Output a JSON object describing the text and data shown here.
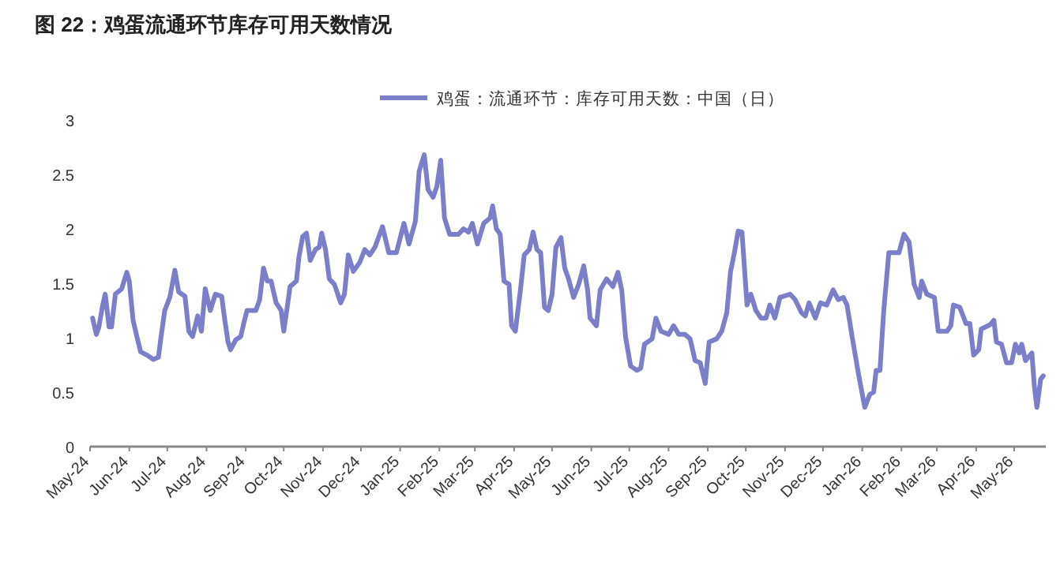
{
  "chart_data": {
    "type": "line",
    "title": "图 22：鸡蛋流通环节库存可用天数情况",
    "x": [
      "2024-05-03",
      "2024-05-06",
      "2024-05-08",
      "2024-05-11",
      "2024-05-13",
      "2024-05-16",
      "2024-05-18",
      "2024-05-21",
      "2024-05-26",
      "2024-05-30",
      "2024-06-01",
      "2024-06-04",
      "2024-06-07",
      "2024-06-10",
      "2024-06-15",
      "2024-06-20",
      "2024-06-24",
      "2024-06-26",
      "2024-06-29",
      "2024-07-03",
      "2024-07-07",
      "2024-07-10",
      "2024-07-15",
      "2024-07-18",
      "2024-07-21",
      "2024-07-25",
      "2024-07-28",
      "2024-07-31",
      "2024-08-04",
      "2024-08-08",
      "2024-08-13",
      "2024-08-15",
      "2024-08-18",
      "2024-08-20",
      "2024-08-24",
      "2024-08-28",
      "2024-08-31",
      "2024-09-02",
      "2024-09-09",
      "2024-09-12",
      "2024-09-15",
      "2024-09-18",
      "2024-09-21",
      "2024-09-25",
      "2024-09-29",
      "2024-10-01",
      "2024-10-04",
      "2024-10-06",
      "2024-10-11",
      "2024-10-13",
      "2024-10-16",
      "2024-10-19",
      "2024-10-22",
      "2024-10-26",
      "2024-10-29",
      "2024-10-31",
      "2024-11-03",
      "2024-11-06",
      "2024-11-10",
      "2024-11-15",
      "2024-11-18",
      "2024-11-21",
      "2024-11-25",
      "2024-11-30",
      "2024-12-04",
      "2024-12-08",
      "2024-12-12",
      "2024-12-18",
      "2024-12-23",
      "2024-12-25",
      "2024-12-29",
      "2025-01-04",
      "2025-01-08",
      "2025-01-13",
      "2025-01-16",
      "2025-01-20",
      "2025-01-23",
      "2025-01-27",
      "2025-01-30",
      "2025-02-02",
      "2025-02-05",
      "2025-02-09",
      "2025-02-16",
      "2025-02-20",
      "2025-02-24",
      "2025-02-27",
      "2025-03-03",
      "2025-03-08",
      "2025-03-13",
      "2025-03-15",
      "2025-03-18",
      "2025-03-21",
      "2025-03-24",
      "2025-03-28",
      "2025-03-30",
      "2025-04-02",
      "2025-04-06",
      "2025-04-09",
      "2025-04-13",
      "2025-04-16",
      "2025-04-19",
      "2025-04-22",
      "2025-04-25",
      "2025-04-28",
      "2025-05-01",
      "2025-05-04",
      "2025-05-08",
      "2025-05-11",
      "2025-05-14",
      "2025-05-18",
      "2025-05-22",
      "2025-05-26",
      "2025-05-29",
      "2025-05-31",
      "2025-06-05",
      "2025-06-08",
      "2025-06-13",
      "2025-06-18",
      "2025-06-22",
      "2025-06-25",
      "2025-06-28",
      "2025-07-02",
      "2025-07-07",
      "2025-07-10",
      "2025-07-13",
      "2025-07-19",
      "2025-07-22",
      "2025-07-26",
      "2025-08-01",
      "2025-08-05",
      "2025-08-09",
      "2025-08-14",
      "2025-08-18",
      "2025-08-22",
      "2025-08-26",
      "2025-08-30",
      "2025-09-02",
      "2025-09-08",
      "2025-09-12",
      "2025-09-16",
      "2025-09-19",
      "2025-09-22",
      "2025-09-25",
      "2025-09-28",
      "2025-10-02",
      "2025-10-05",
      "2025-10-09",
      "2025-10-13",
      "2025-10-17",
      "2025-10-20",
      "2025-10-24",
      "2025-10-28",
      "2025-11-05",
      "2025-11-09",
      "2025-11-14",
      "2025-11-17",
      "2025-11-20",
      "2025-11-25",
      "2025-11-29",
      "2025-12-04",
      "2025-12-09",
      "2025-12-13",
      "2025-12-17",
      "2025-12-20",
      "2025-12-24",
      "2025-12-29",
      "2026-01-03",
      "2026-01-07",
      "2026-01-10",
      "2026-01-12",
      "2026-01-15",
      "2026-01-18",
      "2026-01-22",
      "2026-01-30",
      "2026-02-03",
      "2026-02-07",
      "2026-02-11",
      "2026-02-15",
      "2026-02-17",
      "2026-02-21",
      "2026-02-27",
      "2026-03-02",
      "2026-03-09",
      "2026-03-12",
      "2026-03-14",
      "2026-03-19",
      "2026-03-24",
      "2026-03-27",
      "2026-03-30",
      "2026-04-03",
      "2026-04-05",
      "2026-04-12",
      "2026-04-15",
      "2026-04-17",
      "2026-04-21",
      "2026-04-25",
      "2026-04-29",
      "2026-05-02",
      "2026-05-05",
      "2026-05-07",
      "2026-05-10",
      "2026-05-15",
      "2026-05-17",
      "2026-05-19",
      "2026-05-22",
      "2026-05-24"
    ],
    "series": [
      {
        "name": "鸡蛋：流通环节：库存可用天数：中国（日）",
        "color": "#7b7fc9",
        "values": [
          1.18,
          1.03,
          1.1,
          1.3,
          1.4,
          1.1,
          1.1,
          1.4,
          1.45,
          1.6,
          1.52,
          1.16,
          1.01,
          0.87,
          0.84,
          0.8,
          0.82,
          1.0,
          1.25,
          1.37,
          1.62,
          1.42,
          1.38,
          1.06,
          1.01,
          1.2,
          1.06,
          1.45,
          1.25,
          1.4,
          1.38,
          1.2,
          0.96,
          0.89,
          0.98,
          1.01,
          1.16,
          1.25,
          1.25,
          1.35,
          1.64,
          1.52,
          1.52,
          1.32,
          1.25,
          1.06,
          1.3,
          1.47,
          1.52,
          1.74,
          1.93,
          1.96,
          1.71,
          1.81,
          1.83,
          1.96,
          1.81,
          1.54,
          1.49,
          1.32,
          1.4,
          1.76,
          1.61,
          1.69,
          1.81,
          1.76,
          1.83,
          2.02,
          1.78,
          1.78,
          1.78,
          2.05,
          1.86,
          2.07,
          2.53,
          2.68,
          2.36,
          2.29,
          2.39,
          2.63,
          2.1,
          1.95,
          1.95,
          2.0,
          1.97,
          2.05,
          1.86,
          2.05,
          2.1,
          2.21,
          2.0,
          1.95,
          1.52,
          1.49,
          1.11,
          1.06,
          1.44,
          1.76,
          1.81,
          1.97,
          1.81,
          1.78,
          1.28,
          1.25,
          1.4,
          1.83,
          1.92,
          1.64,
          1.54,
          1.37,
          1.49,
          1.66,
          1.44,
          1.18,
          1.11,
          1.44,
          1.54,
          1.47,
          1.6,
          1.44,
          1.01,
          0.74,
          0.7,
          0.72,
          0.94,
          0.99,
          1.18,
          1.06,
          1.03,
          1.11,
          1.03,
          1.03,
          0.99,
          0.79,
          0.77,
          0.58,
          0.96,
          0.99,
          1.06,
          1.23,
          1.61,
          1.78,
          1.98,
          1.97,
          1.3,
          1.4,
          1.25,
          1.18,
          1.18,
          1.3,
          1.18,
          1.37,
          1.4,
          1.35,
          1.23,
          1.2,
          1.32,
          1.18,
          1.32,
          1.3,
          1.44,
          1.35,
          1.37,
          1.3,
          1.01,
          0.67,
          0.36,
          0.48,
          0.5,
          0.7,
          0.7,
          1.25,
          1.78,
          1.78,
          1.95,
          1.88,
          1.49,
          1.37,
          1.52,
          1.4,
          1.37,
          1.06,
          1.06,
          1.11,
          1.3,
          1.28,
          1.13,
          1.13,
          0.84,
          0.89,
          1.08,
          1.12,
          1.16,
          0.96,
          0.94,
          0.77,
          0.77,
          0.94,
          0.86,
          0.94,
          0.79,
          0.86,
          0.55,
          0.36,
          0.62,
          0.65
        ]
      }
    ],
    "xlim": [
      "2024-05-01",
      "2026-05-26"
    ],
    "xticks": [
      {
        "value": "2024-05-01",
        "label": "May-24"
      },
      {
        "value": "2024-06-01",
        "label": "Jun-24"
      },
      {
        "value": "2024-07-01",
        "label": "Jul-24"
      },
      {
        "value": "2024-08-01",
        "label": "Aug-24"
      },
      {
        "value": "2024-09-01",
        "label": "Sep-24"
      },
      {
        "value": "2024-10-01",
        "label": "Oct-24"
      },
      {
        "value": "2024-11-01",
        "label": "Nov-24"
      },
      {
        "value": "2024-12-01",
        "label": "Dec-24"
      },
      {
        "value": "2025-01-01",
        "label": "Jan-25"
      },
      {
        "value": "2025-02-01",
        "label": "Feb-25"
      },
      {
        "value": "2025-03-01",
        "label": "Mar-25"
      },
      {
        "value": "2025-04-01",
        "label": "Apr-25"
      },
      {
        "value": "2025-05-01",
        "label": "May-25"
      },
      {
        "value": "2025-06-01",
        "label": "Jun-25"
      },
      {
        "value": "2025-07-01",
        "label": "Jul-25"
      },
      {
        "value": "2025-08-01",
        "label": "Aug-25"
      },
      {
        "value": "2025-09-01",
        "label": "Sep-25"
      },
      {
        "value": "2025-10-01",
        "label": "Oct-25"
      },
      {
        "value": "2025-11-01",
        "label": "Nov-25"
      },
      {
        "value": "2025-12-01",
        "label": "Dec-25"
      },
      {
        "value": "2026-01-01",
        "label": "Jan-26"
      },
      {
        "value": "2026-02-01",
        "label": "Feb-26"
      },
      {
        "value": "2026-03-01",
        "label": "Mar-26"
      },
      {
        "value": "2026-04-01",
        "label": "Apr-26"
      },
      {
        "value": "2026-05-01",
        "label": "May-26"
      }
    ],
    "ylim": [
      0,
      3
    ],
    "yticks": [
      0,
      0.5,
      1,
      1.5,
      2,
      2.5,
      3
    ],
    "grid": false,
    "legend": "top",
    "marker": "none",
    "line_style": "solid"
  }
}
